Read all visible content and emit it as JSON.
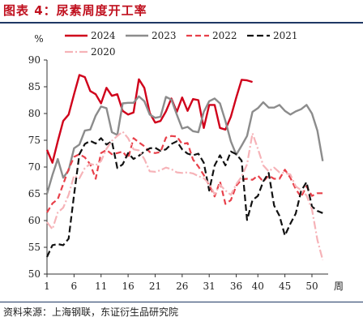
{
  "header": {
    "title": "图表 4：尿素周度开工率"
  },
  "footer": {
    "source": "资料来源：上海钢联，东证衍生品研究院"
  },
  "chart_data": {
    "type": "line",
    "ylabel": "%",
    "xlabel": "周",
    "ylim": [
      50,
      90
    ],
    "xlim": [
      1,
      53
    ],
    "yticks": [
      50,
      55,
      60,
      65,
      70,
      75,
      80,
      85,
      90
    ],
    "xticks": [
      1,
      6,
      11,
      16,
      21,
      26,
      31,
      36,
      40,
      45,
      50
    ],
    "grid": false,
    "legend_position": "top",
    "series": [
      {
        "name": "2024",
        "color": "#d0021b",
        "dash": "solid",
        "width": 2.4,
        "x": [
          1,
          2,
          3,
          4,
          5,
          6,
          7,
          8,
          9,
          10,
          11,
          12,
          13,
          14,
          15,
          16,
          17,
          18,
          19,
          20,
          21,
          22,
          23,
          24,
          25,
          26,
          27,
          28,
          29,
          30,
          31,
          32,
          33,
          34,
          35,
          36,
          37,
          38,
          39
        ],
        "y": [
          73.2,
          70.8,
          74.8,
          78.6,
          79.8,
          83.6,
          87.2,
          86.8,
          84.2,
          83.6,
          81.9,
          84.8,
          83.3,
          83.6,
          80.5,
          79.8,
          80.2,
          86.4,
          84.8,
          80.1,
          78.3,
          78.6,
          80.4,
          82.8,
          80.3,
          83.0,
          80.5,
          82.7,
          82.5,
          77.3,
          81.6,
          81.6,
          77.3,
          77.0,
          79.4,
          83.0,
          86.3,
          86.2,
          85.9
        ]
      },
      {
        "name": "2023",
        "color": "#8c8c8c",
        "dash": "solid",
        "width": 2.4,
        "x": [
          1,
          2,
          3,
          4,
          5,
          6,
          7,
          8,
          9,
          10,
          11,
          12,
          13,
          14,
          15,
          16,
          17,
          18,
          19,
          20,
          21,
          22,
          23,
          24,
          25,
          26,
          27,
          28,
          29,
          30,
          31,
          32,
          33,
          34,
          35,
          36,
          37,
          38,
          39,
          40,
          41,
          42,
          43,
          44,
          45,
          46,
          47,
          48,
          49,
          50,
          51,
          52
        ],
        "y": [
          65.0,
          68.5,
          71.5,
          68.0,
          69.4,
          73.5,
          74.2,
          76.8,
          77.0,
          79.6,
          81.3,
          81.0,
          76.5,
          76.0,
          81.9,
          82.0,
          82.0,
          83.2,
          82.3,
          79.8,
          79.2,
          79.4,
          83.1,
          82.6,
          79.8,
          77.2,
          77.5,
          76.7,
          76.5,
          80.3,
          82.3,
          82.8,
          81.9,
          78.6,
          74.8,
          72.3,
          74.0,
          75.8,
          80.3,
          81.0,
          82.1,
          81.1,
          81.1,
          81.6,
          80.5,
          79.8,
          80.4,
          80.8,
          81.6,
          80.0,
          76.8,
          71.1
        ]
      },
      {
        "name": "2022",
        "color": "#e8404a",
        "dash": "7,4",
        "width": 2.2,
        "x": [
          1,
          2,
          3,
          4,
          5,
          6,
          7,
          8,
          9,
          10,
          11,
          12,
          13,
          14,
          15,
          16,
          17,
          18,
          19,
          20,
          21,
          22,
          23,
          24,
          25,
          26,
          27,
          28,
          29,
          30,
          31,
          32,
          33,
          34,
          35,
          36,
          37,
          38,
          39,
          40,
          41,
          42,
          43,
          44,
          45,
          46,
          47,
          48,
          49,
          50,
          51,
          52
        ],
        "y": [
          61.5,
          63.2,
          64.0,
          66.8,
          69.6,
          71.9,
          72.4,
          71.8,
          70.5,
          67.8,
          72.6,
          73.2,
          72.4,
          72.6,
          72.9,
          71.6,
          75.4,
          74.6,
          73.9,
          72.8,
          72.6,
          72.8,
          75.5,
          75.8,
          75.7,
          74.3,
          74.5,
          71.4,
          70.1,
          68.5,
          66.6,
          64.5,
          67.3,
          63.1,
          63.8,
          66.5,
          67.7,
          67.8,
          67.6,
          68.4,
          67.3,
          68.4,
          67.8,
          67.8,
          69.5,
          68.0,
          65.9,
          64.4,
          66.4,
          64.6,
          65.1,
          65.1
        ]
      },
      {
        "name": "2021",
        "color": "#111111",
        "dash": "8,4",
        "width": 2.2,
        "x": [
          1,
          2,
          3,
          4,
          5,
          6,
          7,
          8,
          9,
          10,
          11,
          12,
          13,
          14,
          15,
          16,
          17,
          18,
          19,
          20,
          21,
          22,
          23,
          24,
          25,
          26,
          27,
          28,
          29,
          30,
          31,
          32,
          33,
          34,
          35,
          36,
          37,
          38,
          39,
          40,
          41,
          42,
          43,
          44,
          45,
          46,
          47,
          48,
          49,
          50,
          51,
          52
        ],
        "y": [
          53.2,
          55.4,
          55.6,
          55.4,
          56.6,
          64.8,
          72.4,
          74.3,
          74.9,
          74.4,
          75.4,
          74.2,
          74.8,
          69.8,
          70.5,
          72.6,
          71.5,
          72.1,
          72.9,
          73.5,
          73.6,
          73.0,
          73.3,
          74.3,
          74.8,
          73.3,
          72.5,
          72.2,
          72.5,
          70.8,
          65.6,
          70.3,
          72.2,
          70.3,
          72.9,
          72.4,
          71.2,
          60.1,
          63.8,
          64.6,
          67.3,
          68.9,
          62.8,
          60.9,
          57.2,
          59.4,
          61.3,
          65.5,
          67.2,
          62.6,
          61.8,
          61.4
        ]
      },
      {
        "name": "2020",
        "color": "#f6b3b8",
        "dash": "10,3,2,3",
        "width": 2.2,
        "x": [
          1,
          2,
          3,
          4,
          5,
          6,
          7,
          8,
          9,
          10,
          11,
          12,
          13,
          14,
          15,
          16,
          17,
          18,
          19,
          20,
          21,
          22,
          23,
          24,
          25,
          26,
          27,
          28,
          29,
          30,
          31,
          32,
          33,
          34,
          35,
          36,
          37,
          38,
          39,
          40,
          41,
          42,
          43,
          44,
          45,
          46,
          47,
          48,
          49,
          50,
          51,
          52
        ],
        "y": [
          59.7,
          58.4,
          61.5,
          62.4,
          64.8,
          68.4,
          67.9,
          69.8,
          70.6,
          70.3,
          71.1,
          73.4,
          74.9,
          75.8,
          76.6,
          75.4,
          73.3,
          73.1,
          71.5,
          69.2,
          69.1,
          69.4,
          69.9,
          69.6,
          69.0,
          68.9,
          69.0,
          68.8,
          68.3,
          67.9,
          66.9,
          64.9,
          66.7,
          65.6,
          64.8,
          66.8,
          68.2,
          70.5,
          76.3,
          73.4,
          70.3,
          69.2,
          69.9,
          69.0,
          68.9,
          68.6,
          66.4,
          65.7,
          64.7,
          62.1,
          56.4,
          52.6
        ]
      }
    ]
  }
}
